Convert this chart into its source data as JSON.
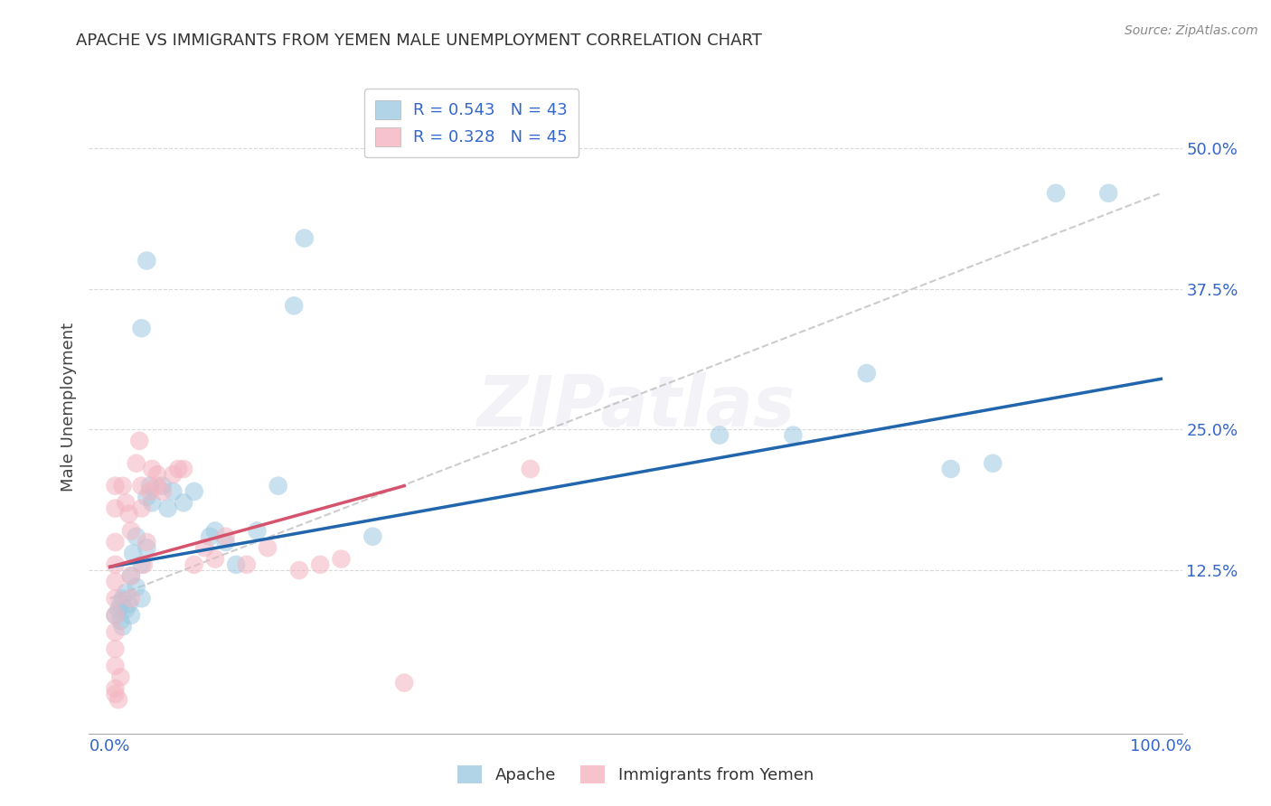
{
  "title": "APACHE VS IMMIGRANTS FROM YEMEN MALE UNEMPLOYMENT CORRELATION CHART",
  "source": "Source: ZipAtlas.com",
  "ylabel": "Male Unemployment",
  "xlim": [
    -0.02,
    1.02
  ],
  "ylim": [
    -0.02,
    0.56
  ],
  "xtick_labels": [
    "0.0%",
    "100.0%"
  ],
  "xtick_positions": [
    0.0,
    1.0
  ],
  "ytick_labels": [
    "12.5%",
    "25.0%",
    "37.5%",
    "50.0%"
  ],
  "ytick_positions": [
    0.125,
    0.25,
    0.375,
    0.5
  ],
  "background_color": "#ffffff",
  "grid_color": "#d0d0d0",
  "watermark": "ZIPatlas",
  "legend": {
    "apache_R": "0.543",
    "apache_N": "43",
    "yemen_R": "0.328",
    "yemen_N": "45"
  },
  "apache_color": "#9ecae1",
  "apache_line_color": "#2166ac",
  "yemen_color": "#f4b4c0",
  "yemen_line_color": "#d6536d",
  "dash_line_color": "#cccccc",
  "apache_scatter": [
    [
      0.005,
      0.085
    ],
    [
      0.008,
      0.09
    ],
    [
      0.01,
      0.095
    ],
    [
      0.01,
      0.08
    ],
    [
      0.012,
      0.1
    ],
    [
      0.012,
      0.075
    ],
    [
      0.015,
      0.105
    ],
    [
      0.015,
      0.09
    ],
    [
      0.018,
      0.095
    ],
    [
      0.02,
      0.12
    ],
    [
      0.02,
      0.085
    ],
    [
      0.022,
      0.14
    ],
    [
      0.025,
      0.155
    ],
    [
      0.025,
      0.11
    ],
    [
      0.03,
      0.13
    ],
    [
      0.03,
      0.1
    ],
    [
      0.035,
      0.145
    ],
    [
      0.035,
      0.19
    ],
    [
      0.038,
      0.2
    ],
    [
      0.04,
      0.185
    ],
    [
      0.05,
      0.2
    ],
    [
      0.055,
      0.18
    ],
    [
      0.06,
      0.195
    ],
    [
      0.07,
      0.185
    ],
    [
      0.08,
      0.195
    ],
    [
      0.095,
      0.155
    ],
    [
      0.1,
      0.16
    ],
    [
      0.11,
      0.15
    ],
    [
      0.12,
      0.13
    ],
    [
      0.14,
      0.16
    ],
    [
      0.16,
      0.2
    ],
    [
      0.175,
      0.36
    ],
    [
      0.185,
      0.42
    ],
    [
      0.25,
      0.155
    ],
    [
      0.03,
      0.34
    ],
    [
      0.035,
      0.4
    ],
    [
      0.58,
      0.245
    ],
    [
      0.65,
      0.245
    ],
    [
      0.72,
      0.3
    ],
    [
      0.8,
      0.215
    ],
    [
      0.84,
      0.22
    ],
    [
      0.9,
      0.46
    ],
    [
      0.95,
      0.46
    ]
  ],
  "yemen_scatter": [
    [
      0.005,
      0.2
    ],
    [
      0.005,
      0.18
    ],
    [
      0.005,
      0.15
    ],
    [
      0.005,
      0.13
    ],
    [
      0.005,
      0.115
    ],
    [
      0.005,
      0.1
    ],
    [
      0.005,
      0.085
    ],
    [
      0.005,
      0.07
    ],
    [
      0.005,
      0.055
    ],
    [
      0.005,
      0.04
    ],
    [
      0.005,
      0.02
    ],
    [
      0.005,
      0.015
    ],
    [
      0.008,
      0.01
    ],
    [
      0.01,
      0.03
    ],
    [
      0.012,
      0.2
    ],
    [
      0.015,
      0.185
    ],
    [
      0.018,
      0.175
    ],
    [
      0.02,
      0.16
    ],
    [
      0.02,
      0.12
    ],
    [
      0.02,
      0.1
    ],
    [
      0.025,
      0.22
    ],
    [
      0.028,
      0.24
    ],
    [
      0.03,
      0.2
    ],
    [
      0.03,
      0.18
    ],
    [
      0.032,
      0.13
    ],
    [
      0.035,
      0.15
    ],
    [
      0.038,
      0.195
    ],
    [
      0.04,
      0.215
    ],
    [
      0.045,
      0.21
    ],
    [
      0.045,
      0.2
    ],
    [
      0.05,
      0.195
    ],
    [
      0.06,
      0.21
    ],
    [
      0.065,
      0.215
    ],
    [
      0.07,
      0.215
    ],
    [
      0.08,
      0.13
    ],
    [
      0.09,
      0.145
    ],
    [
      0.1,
      0.135
    ],
    [
      0.11,
      0.155
    ],
    [
      0.13,
      0.13
    ],
    [
      0.15,
      0.145
    ],
    [
      0.18,
      0.125
    ],
    [
      0.2,
      0.13
    ],
    [
      0.22,
      0.135
    ],
    [
      0.28,
      0.025
    ],
    [
      0.4,
      0.215
    ]
  ],
  "blue_trend": [
    0.0,
    0.128,
    1.0,
    0.295
  ],
  "pink_trend": [
    0.0,
    0.128,
    0.28,
    0.2
  ],
  "dash_trend": [
    0.0,
    0.1,
    1.0,
    0.46
  ]
}
